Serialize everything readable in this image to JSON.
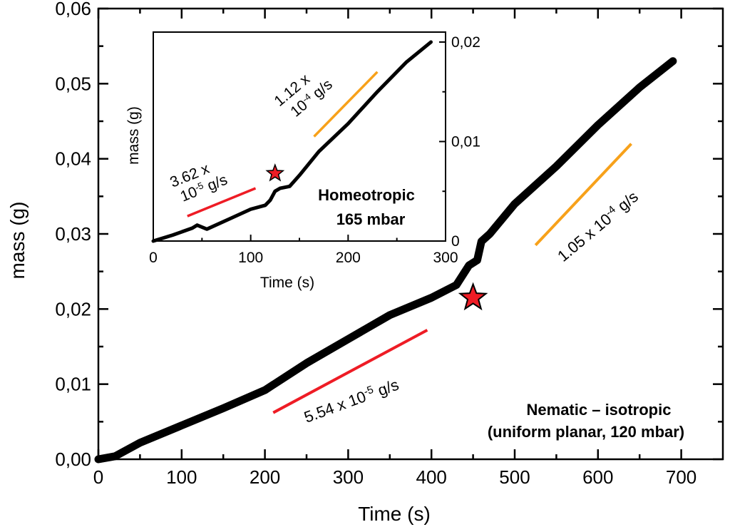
{
  "chart_data": [
    {
      "type": "line",
      "name": "main",
      "xlabel": "Time (s)",
      "ylabel": "mass (g)",
      "xlim": [
        0,
        750
      ],
      "ylim": [
        0,
        0.06
      ],
      "xticks": [
        0,
        100,
        200,
        300,
        400,
        500,
        600,
        700
      ],
      "xtick_labels": [
        "0",
        "100",
        "200",
        "300",
        "400",
        "500",
        "600",
        "700"
      ],
      "yticks": [
        0,
        0.01,
        0.02,
        0.03,
        0.04,
        0.05,
        0.06
      ],
      "ytick_labels": [
        "0,00",
        "0,01",
        "0,02",
        "0,03",
        "0,04",
        "0,05",
        "0,06"
      ],
      "series": [
        {
          "name": "mass",
          "color": "#000000",
          "x": [
            0,
            20,
            50,
            100,
            150,
            200,
            250,
            300,
            350,
            400,
            430,
            445,
            455,
            460,
            470,
            500,
            550,
            600,
            650,
            690
          ],
          "y": [
            0.0,
            0.0004,
            0.0022,
            0.0045,
            0.0068,
            0.0092,
            0.0128,
            0.016,
            0.0192,
            0.0215,
            0.0232,
            0.0258,
            0.0265,
            0.029,
            0.03,
            0.034,
            0.039,
            0.0445,
            0.0495,
            0.053
          ]
        }
      ],
      "fit_lines": [
        {
          "label_prefix": "5.54 x 10",
          "label_exp": "-5",
          "label_suffix": " g/s",
          "color": "#ee1c25",
          "x": [
            210,
            395
          ],
          "y": [
            0.0062,
            0.0172
          ]
        },
        {
          "label_prefix": "1.05 x 10",
          "label_exp": "-4",
          "label_suffix": " g/s",
          "color": "#f7a11a",
          "x": [
            525,
            640
          ],
          "y": [
            0.0285,
            0.042
          ]
        }
      ],
      "marker": {
        "type": "star",
        "color": "#ee1c25",
        "x": 450,
        "y": 0.0215
      },
      "annotation_lines": [
        "Nematic – isotropic",
        "(uniform planar, 120 mbar)"
      ]
    },
    {
      "type": "line",
      "name": "inset",
      "xlabel": "Time (s)",
      "ylabel": "mass (g)",
      "xlim": [
        0,
        300
      ],
      "ylim": [
        0,
        0.021
      ],
      "xticks": [
        0,
        100,
        200,
        300
      ],
      "xtick_labels": [
        "0",
        "100",
        "200",
        "300"
      ],
      "yticks": [
        0,
        0.01,
        0.02
      ],
      "ytick_labels": [
        "0",
        "0,01",
        "0,02"
      ],
      "series": [
        {
          "name": "mass",
          "color": "#000000",
          "x": [
            0,
            20,
            40,
            45,
            55,
            80,
            100,
            115,
            120,
            125,
            130,
            140,
            150,
            170,
            200,
            230,
            260,
            285
          ],
          "y": [
            0.0,
            0.0006,
            0.0013,
            0.0016,
            0.0012,
            0.0023,
            0.0032,
            0.0036,
            0.0041,
            0.005,
            0.0053,
            0.0055,
            0.0066,
            0.009,
            0.0118,
            0.015,
            0.018,
            0.02
          ]
        }
      ],
      "fit_lines": [
        {
          "label_line1": "3.62 x",
          "label_prefix": "10",
          "label_exp": "-5",
          "label_suffix": " g/s",
          "color": "#ee1c25",
          "x": [
            35,
            105
          ],
          "y": [
            0.0025,
            0.0053
          ]
        },
        {
          "label_line1": "1.12 x",
          "label_prefix": "10",
          "label_exp": "-4",
          "label_suffix": " g/s",
          "color": "#f7a11a",
          "x": [
            165,
            230
          ],
          "y": [
            0.0105,
            0.017
          ]
        }
      ],
      "marker": {
        "type": "star",
        "color": "#ee1c25",
        "x": 125,
        "y": 0.0068
      },
      "annotation_lines": [
        "Homeotropic",
        "165 mbar"
      ]
    }
  ]
}
